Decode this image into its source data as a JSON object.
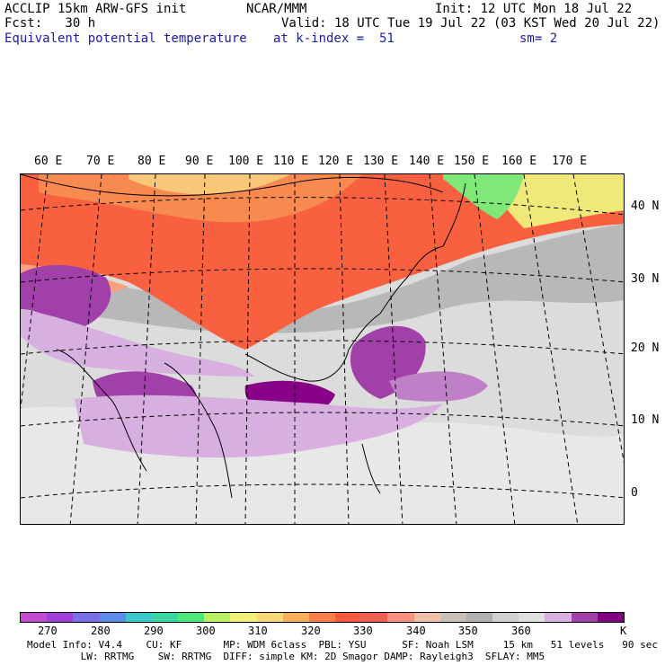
{
  "header": {
    "title": "ACCLIP 15km ARW-GFS init",
    "org": "NCAR/MMM",
    "init": "Init: 12 UTC Mon 18 Jul 22",
    "fcst": "Fcst:   30 h",
    "valid": "Valid: 18 UTC Tue 19 Jul 22 (03 KST Wed 20 Jul 22)",
    "field": "Equivalent potential temperature",
    "level": "at k-index =  51",
    "smooth": "sm= 2"
  },
  "map": {
    "lon_labels": [
      "60 E",
      "70 E",
      "80 E",
      "90 E",
      "100 E",
      "110 E",
      "120 E",
      "130 E",
      "140 E",
      "150 E",
      "160 E",
      "170 E"
    ],
    "lat_labels": [
      "40 N",
      "30 N",
      "20 N",
      "10 N",
      "0"
    ]
  },
  "colorbar": {
    "colors": [
      "#c44bd0",
      "#a040d8",
      "#7b6fe8",
      "#5a8ee8",
      "#3ac8c8",
      "#3ad8a0",
      "#50e878",
      "#b8f060",
      "#f0f078",
      "#f8d878",
      "#f8b058",
      "#f88048",
      "#f85a40",
      "#f06050",
      "#f89080",
      "#f0c0a8",
      "#c8c0b8",
      "#b0b0b0",
      "#d0d0d0",
      "#e0e0e0",
      "#d8b0e0",
      "#a040a8",
      "#800080"
    ],
    "tick_labels": [
      "270",
      "280",
      "290",
      "300",
      "310",
      "320",
      "330",
      "340",
      "350",
      "360"
    ],
    "unit": "K"
  },
  "footer": {
    "line1": "Model Info: V4.4    CU: KF       MP: WDM 6class  PBL: YSU      SF: Noah LSM     15 km   51 levels   90 sec",
    "line2": "         LW: RRTMG    SW: RRTMG  DIFF: simple KM: 2D Smagor DAMP: Rayleigh3  SFLAY: MM5"
  }
}
